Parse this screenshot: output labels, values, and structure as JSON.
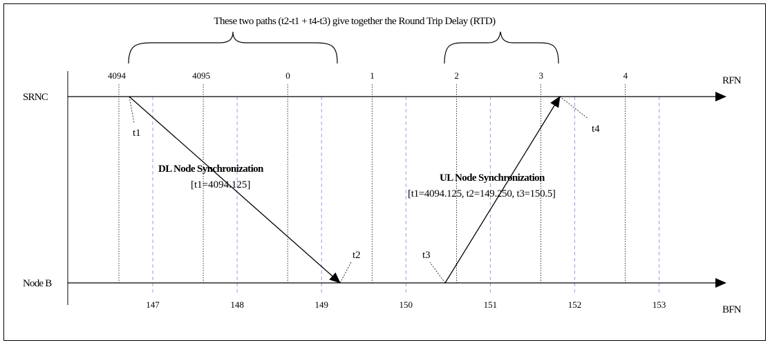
{
  "diagram": {
    "caption": "These two paths (t2-t1 + t4-t3) give together the Round Trip Delay (RTD)",
    "srnc_label": "SRNC",
    "nodeb_label": "Node B",
    "rfn_label": "RFN",
    "bfn_label": "BFN",
    "rfn_ticks": [
      "4094",
      "4095",
      "0",
      "1",
      "2",
      "3",
      "4"
    ],
    "bfn_ticks": [
      "147",
      "148",
      "149",
      "150",
      "151",
      "152",
      "153"
    ],
    "t1": "t1",
    "t2": "t2",
    "t3": "t3",
    "t4": "t4",
    "dl_title": "DL Node Synchronization",
    "dl_params": "[t1=4094.125]",
    "ul_title": "UL Node Synchronization",
    "ul_params": "[t1=4094.125, t2=149.250, t3=150.5]",
    "colors": {
      "line": "#000000",
      "rfn_grid": "#000000",
      "bfn_grid": "#b48ee0"
    }
  }
}
